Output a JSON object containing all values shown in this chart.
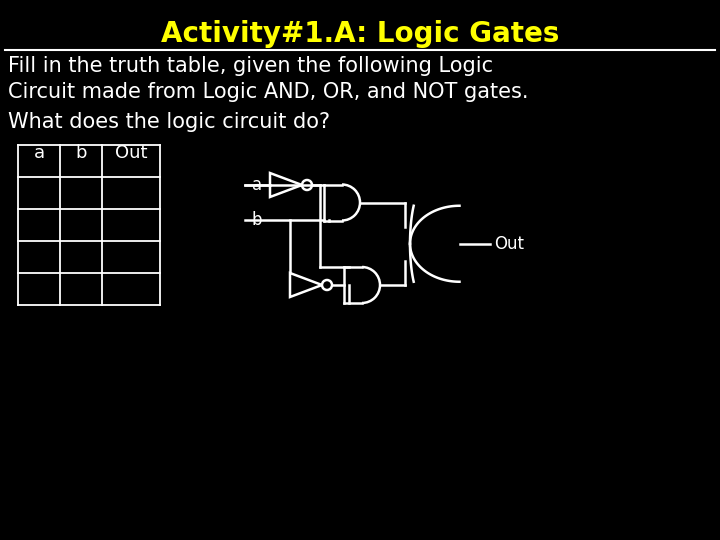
{
  "title": "Activity#1.A: Logic Gates",
  "title_color": "#ffff00",
  "background_color": "#000000",
  "text_color": "#ffffff",
  "line1": "Fill in the truth table, given the following Logic",
  "line2": "Circuit made from Logic AND, OR, and NOT gates.",
  "line3": "What does the logic circuit do?",
  "table_headers": [
    "a",
    "b",
    "Out"
  ],
  "table_rows": 4,
  "title_fontsize": 20,
  "body_fontsize": 15
}
